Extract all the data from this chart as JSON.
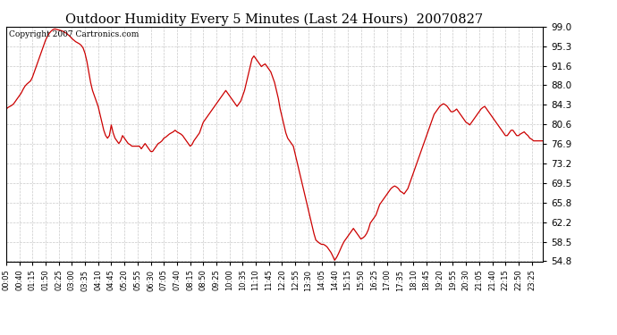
{
  "title": "Outdoor Humidity Every 5 Minutes (Last 24 Hours)  20070827",
  "copyright": "Copyright 2007 Cartronics.com",
  "line_color": "#cc0000",
  "bg_color": "#ffffff",
  "grid_color": "#bbbbbb",
  "ylim": [
    54.8,
    99.0
  ],
  "yticks": [
    54.8,
    58.5,
    62.2,
    65.8,
    69.5,
    73.2,
    76.9,
    80.6,
    84.3,
    88.0,
    91.6,
    95.3,
    99.0
  ],
  "xtick_labels": [
    "00:05",
    "00:40",
    "01:15",
    "01:50",
    "02:25",
    "03:00",
    "03:35",
    "04:10",
    "04:45",
    "05:20",
    "05:55",
    "06:30",
    "07:05",
    "07:40",
    "08:15",
    "08:50",
    "09:25",
    "10:00",
    "10:35",
    "11:10",
    "11:45",
    "12:20",
    "12:55",
    "13:30",
    "14:05",
    "14:40",
    "15:15",
    "15:50",
    "16:25",
    "17:00",
    "17:35",
    "18:10",
    "18:45",
    "19:20",
    "19:55",
    "20:30",
    "21:05",
    "21:40",
    "22:15",
    "22:50",
    "23:25"
  ],
  "humidity_values": [
    83.5,
    83.8,
    84.0,
    84.2,
    84.5,
    85.0,
    85.5,
    86.0,
    86.5,
    87.2,
    87.8,
    88.2,
    88.5,
    88.8,
    89.5,
    90.5,
    91.5,
    92.5,
    93.5,
    94.5,
    95.5,
    96.5,
    97.2,
    97.8,
    98.2,
    98.5,
    98.6,
    98.5,
    98.4,
    98.3,
    98.2,
    98.0,
    97.8,
    97.5,
    97.2,
    96.8,
    96.5,
    96.2,
    96.0,
    95.8,
    95.5,
    95.0,
    94.0,
    92.5,
    90.5,
    88.5,
    87.0,
    86.0,
    85.0,
    84.0,
    82.5,
    81.0,
    79.5,
    78.5,
    78.0,
    78.5,
    80.5,
    79.0,
    78.0,
    77.5,
    77.0,
    77.5,
    78.5,
    78.0,
    77.5,
    77.0,
    76.8,
    76.5,
    76.5,
    76.5,
    76.5,
    76.5,
    76.0,
    76.5,
    77.0,
    76.5,
    76.0,
    75.5,
    75.5,
    76.0,
    76.5,
    77.0,
    77.2,
    77.5,
    78.0,
    78.2,
    78.5,
    78.8,
    79.0,
    79.2,
    79.5,
    79.2,
    79.0,
    78.8,
    78.5,
    78.0,
    77.5,
    77.0,
    76.5,
    76.8,
    77.5,
    78.0,
    78.5,
    79.0,
    80.0,
    81.0,
    81.5,
    82.0,
    82.5,
    83.0,
    83.5,
    84.0,
    84.5,
    85.0,
    85.5,
    86.0,
    86.5,
    87.0,
    86.5,
    86.0,
    85.5,
    85.0,
    84.5,
    84.0,
    84.5,
    85.0,
    86.0,
    87.0,
    88.5,
    90.0,
    91.5,
    93.0,
    93.5,
    93.0,
    92.5,
    92.0,
    91.5,
    91.8,
    92.0,
    91.5,
    91.0,
    90.5,
    89.5,
    88.5,
    87.0,
    85.5,
    83.5,
    82.0,
    80.5,
    79.0,
    78.0,
    77.5,
    77.0,
    76.5,
    75.0,
    73.5,
    72.0,
    70.5,
    69.0,
    67.5,
    66.0,
    64.5,
    63.0,
    61.5,
    60.0,
    58.8,
    58.5,
    58.2,
    58.0,
    58.0,
    57.8,
    57.5,
    57.0,
    56.5,
    55.8,
    55.0,
    55.5,
    56.2,
    57.0,
    57.8,
    58.5,
    59.0,
    59.5,
    60.0,
    60.5,
    61.0,
    60.5,
    60.0,
    59.5,
    59.0,
    59.2,
    59.5,
    60.0,
    60.8,
    62.0,
    62.5,
    63.0,
    63.5,
    64.5,
    65.5,
    66.0,
    66.5,
    67.0,
    67.5,
    68.0,
    68.5,
    68.8,
    69.0,
    68.8,
    68.5,
    68.0,
    67.8,
    67.5,
    68.0,
    68.5,
    69.5,
    70.5,
    71.5,
    72.5,
    73.5,
    74.5,
    75.5,
    76.5,
    77.5,
    78.5,
    79.5,
    80.5,
    81.5,
    82.5,
    83.0,
    83.5,
    84.0,
    84.3,
    84.5,
    84.3,
    84.0,
    83.5,
    83.0,
    83.0,
    83.2,
    83.5,
    83.0,
    82.5,
    82.0,
    81.5,
    81.0,
    80.8,
    80.5,
    81.0,
    81.5,
    82.0,
    82.5,
    83.0,
    83.5,
    83.8,
    84.0,
    83.5,
    83.0,
    82.5,
    82.0,
    81.5,
    81.0,
    80.5,
    80.0,
    79.5,
    79.0,
    78.5,
    78.5,
    79.0,
    79.5,
    79.5,
    79.0,
    78.5,
    78.5,
    78.8,
    79.0,
    79.2,
    78.8,
    78.5,
    78.0,
    77.8,
    77.5,
    77.5,
    77.5,
    77.5,
    77.5,
    77.5
  ]
}
